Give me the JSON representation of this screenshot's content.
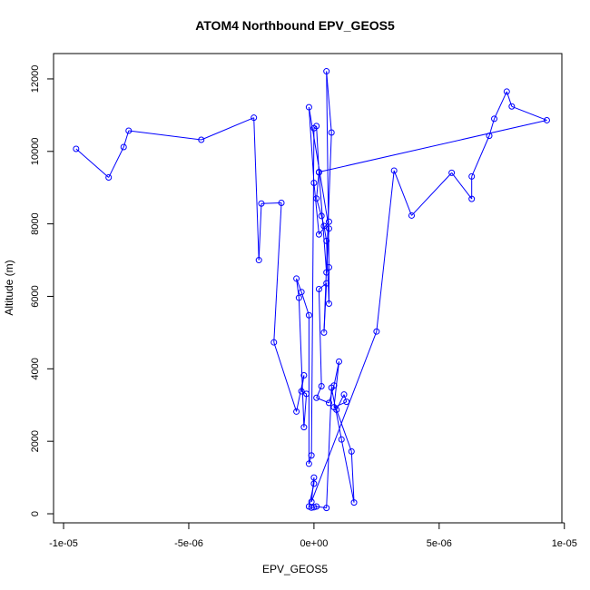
{
  "chart_data": {
    "type": "scatter",
    "title": "ATOM4 Northbound EPV_GEOS5",
    "xlabel": "EPV_GEOS5",
    "ylabel": "Altitude (m)",
    "xlim": [
      -1.04e-05,
      9.9e-06
    ],
    "ylim": [
      -250,
      12700
    ],
    "x_ticks": [
      {
        "value": -1e-05,
        "label": "-1e-05"
      },
      {
        "value": -5e-06,
        "label": "-5e-06"
      },
      {
        "value": 0,
        "label": "0e+00"
      },
      {
        "value": 5e-06,
        "label": "5e-06"
      },
      {
        "value": 1e-05,
        "label": "1e-05"
      }
    ],
    "y_ticks": [
      {
        "value": 0,
        "label": "0"
      },
      {
        "value": 2000,
        "label": "2000"
      },
      {
        "value": 4000,
        "label": "4000"
      },
      {
        "value": 6000,
        "label": "6000"
      },
      {
        "value": 8000,
        "label": "8000"
      },
      {
        "value": 10000,
        "label": "10000"
      },
      {
        "value": 12000,
        "label": "12000"
      }
    ],
    "grid": false,
    "legend": "none",
    "series_color": "#0000FF",
    "style": "points and connecting lines",
    "x": [
      -9.5e-06,
      -8.2e-06,
      -7.6e-06,
      -7.4e-06,
      -4.5e-06,
      -2.4e-06,
      -2.2e-06,
      -2.1e-06,
      -1.3e-06,
      -1.6e-06,
      -7e-07,
      -4e-07,
      -5e-07,
      -3e-07,
      -4e-07,
      -6e-07,
      -7e-07,
      -5e-07,
      -2e-07,
      -2e-07,
      -1e-07,
      0.0,
      1e-07,
      2e-07,
      1e-07,
      3e-07,
      4e-07,
      5e-07,
      6e-07,
      6e-07,
      5e-07,
      7e-07,
      4e-07,
      5e-07,
      2e-07,
      3e-07,
      1e-07,
      6e-07,
      8e-07,
      1e-06,
      8e-07,
      1.3e-06,
      1.2e-06,
      9e-07,
      1.5e-06,
      1.6e-06,
      1.1e-06,
      7e-07,
      5e-07,
      1e-07,
      0.0,
      -1e-07,
      -2e-07,
      0.0,
      0.0,
      -1e-07,
      2.5e-06,
      3.2e-06,
      3.9e-06,
      5.5e-06,
      6.3e-06,
      6.3e-06,
      7e-06,
      7.2e-06,
      7.7e-06,
      7.9e-06,
      9.3e-06,
      2e-07,
      5e-07,
      6e-07,
      -2e-07,
      0.0,
      2e-07,
      6e-07
    ],
    "y": [
      10070,
      9280,
      10120,
      10570,
      10320,
      10930,
      7000,
      8560,
      8580,
      4730,
      2820,
      3820,
      3380,
      3310,
      2390,
      5960,
      6490,
      6120,
      5480,
      1380,
      1610,
      10640,
      10700,
      9420,
      8700,
      8220,
      7940,
      7530,
      5800,
      6800,
      12210,
      10520,
      5000,
      6360,
      6200,
      3520,
      3200,
      3060,
      3540,
      4200,
      2940,
      3090,
      3290,
      2870,
      1720,
      310,
      2050,
      3480,
      160,
      200,
      180,
      170,
      200,
      830,
      1000,
      330,
      5030,
      9470,
      8230,
      9410,
      8690,
      9310,
      10430,
      10900,
      11650,
      11240,
      10860,
      9430,
      6660,
      7870,
      11220,
      9130,
      7710,
      8060
    ]
  }
}
